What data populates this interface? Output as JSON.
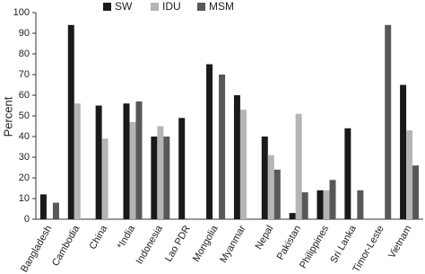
{
  "chart_data": {
    "type": "bar",
    "y_label": "Percent",
    "categories": [
      "Bangladesh",
      "Cambodia",
      "China",
      "*India",
      "Indonesia",
      "Lao PDR",
      "Mongolia",
      "Myanmar",
      "Nepal",
      "Pakistan",
      "Philippines",
      "Sri Lanka",
      "Timor-Leste",
      "Vietnam"
    ],
    "series": [
      {
        "name": "SW",
        "color": "#1a1a1a",
        "values": [
          12,
          94,
          55,
          56,
          40,
          49,
          75,
          60,
          40,
          3,
          14,
          44,
          null,
          65
        ]
      },
      {
        "name": "IDU",
        "color": "#b5b5b5",
        "values": [
          null,
          56,
          39,
          47,
          45,
          null,
          null,
          53,
          31,
          51,
          14,
          null,
          null,
          43
        ]
      },
      {
        "name": "MSM",
        "color": "#585858",
        "values": [
          8,
          null,
          null,
          57,
          40,
          null,
          70,
          null,
          24,
          13,
          19,
          14,
          94,
          26
        ]
      }
    ],
    "ylim": [
      0,
      100
    ],
    "yticks": [
      0,
      10,
      20,
      30,
      40,
      50,
      60,
      70,
      80,
      90,
      100
    ],
    "grid": false,
    "legend": "top"
  }
}
